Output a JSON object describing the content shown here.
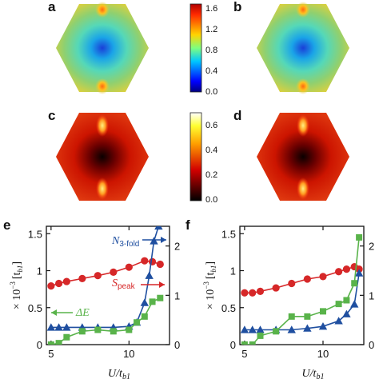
{
  "figure": {
    "panel_labels": [
      "a",
      "b",
      "c",
      "d",
      "e",
      "f"
    ],
    "maps": {
      "top_colorbar": {
        "ticks": [
          "1.6",
          "1.2",
          "0.8",
          "0.4",
          "0.0"
        ],
        "range": [
          0.0,
          1.7
        ],
        "colormap": "jet"
      },
      "bottom_colorbar": {
        "ticks": [
          "0.6",
          "0.4",
          "0.2",
          "0.0"
        ],
        "range": [
          0.0,
          0.7
        ],
        "colormap": "hot"
      }
    }
  },
  "chart_data": [
    {
      "type": "line",
      "panel": "e",
      "xlabel": "U/t",
      "xlabel_sub": "b1",
      "ylabel_left": "× 10",
      "ylabel_left_exp": "−3",
      "ylabel_left_unit": "[t",
      "ylabel_left_unit_sub": "b1",
      "ylabel_left_unit_close": "]",
      "xlim": [
        4.7,
        12.6
      ],
      "ylim_left": [
        0,
        1.6
      ],
      "ylim_right": [
        0,
        2.4
      ],
      "xticks": [
        "5",
        "10"
      ],
      "yticks_left": [
        "0",
        "0.5",
        "1",
        "1.5"
      ],
      "yticks_right": [
        "0",
        "1",
        "2"
      ],
      "annotations": [
        {
          "text": "N",
          "sub": "3-fold",
          "color": "#1f4fa0"
        },
        {
          "text": "S",
          "sub": "peak",
          "color": "#d62728"
        },
        {
          "text": "ΔE",
          "sub": "",
          "color": "#59b34a"
        }
      ],
      "series": [
        {
          "axis": "right",
          "color": "#d62728",
          "marker": "circle",
          "x": [
            5,
            5.5,
            6,
            7,
            8,
            9,
            10,
            11,
            11.5,
            12
          ],
          "y": [
            1.19,
            1.24,
            1.28,
            1.34,
            1.4,
            1.47,
            1.57,
            1.7,
            1.68,
            1.63
          ]
        },
        {
          "axis": "right",
          "color": "#1f4fa0",
          "marker": "triangle",
          "x": [
            5,
            5.5,
            6,
            7,
            8,
            9,
            10,
            10.5,
            11,
            11.3,
            11.6,
            11.9
          ],
          "y": [
            0.35,
            0.35,
            0.35,
            0.35,
            0.35,
            0.35,
            0.37,
            0.45,
            0.85,
            1.4,
            2.1,
            2.4
          ]
        },
        {
          "axis": "left",
          "color": "#59b34a",
          "marker": "square",
          "x": [
            5,
            5.5,
            6,
            7,
            8,
            9,
            10,
            10.5,
            11,
            11.5,
            12
          ],
          "y": [
            0.0,
            0.02,
            0.1,
            0.18,
            0.2,
            0.18,
            0.2,
            0.3,
            0.38,
            0.58,
            0.63
          ]
        }
      ]
    },
    {
      "type": "line",
      "panel": "f",
      "xlabel": "U/t",
      "xlabel_sub": "b1",
      "ylabel_left": "× 10",
      "ylabel_left_exp": "−3",
      "ylabel_left_unit": "[t",
      "ylabel_left_unit_sub": "b1",
      "ylabel_left_unit_close": "]",
      "xlim": [
        4.7,
        12.6
      ],
      "ylim_left": [
        0,
        1.6
      ],
      "ylim_right": [
        0,
        2.4
      ],
      "xticks": [
        "5",
        "10"
      ],
      "yticks_left": [
        "0",
        "0.5",
        "1",
        "1.5"
      ],
      "yticks_right": [
        "0",
        "1",
        "2"
      ],
      "annotations": [],
      "series": [
        {
          "axis": "right",
          "color": "#d62728",
          "marker": "circle",
          "x": [
            5,
            5.5,
            6,
            7,
            8,
            9,
            10,
            11,
            11.5,
            12,
            12.3
          ],
          "y": [
            1.05,
            1.05,
            1.08,
            1.15,
            1.24,
            1.33,
            1.38,
            1.48,
            1.53,
            1.58,
            1.53
          ]
        },
        {
          "axis": "right",
          "color": "#1f4fa0",
          "marker": "triangle",
          "x": [
            5,
            5.5,
            6,
            7,
            8,
            9,
            10,
            11,
            11.5,
            12,
            12.3
          ],
          "y": [
            0.3,
            0.3,
            0.3,
            0.3,
            0.3,
            0.33,
            0.37,
            0.48,
            0.62,
            0.82,
            1.45
          ]
        },
        {
          "axis": "left",
          "color": "#59b34a",
          "marker": "square",
          "x": [
            5,
            5.5,
            6,
            7,
            8,
            9,
            10,
            11,
            11.5,
            12,
            12.3
          ],
          "y": [
            0.0,
            0.0,
            0.12,
            0.18,
            0.38,
            0.38,
            0.45,
            0.55,
            0.6,
            0.83,
            1.45
          ]
        }
      ]
    }
  ]
}
